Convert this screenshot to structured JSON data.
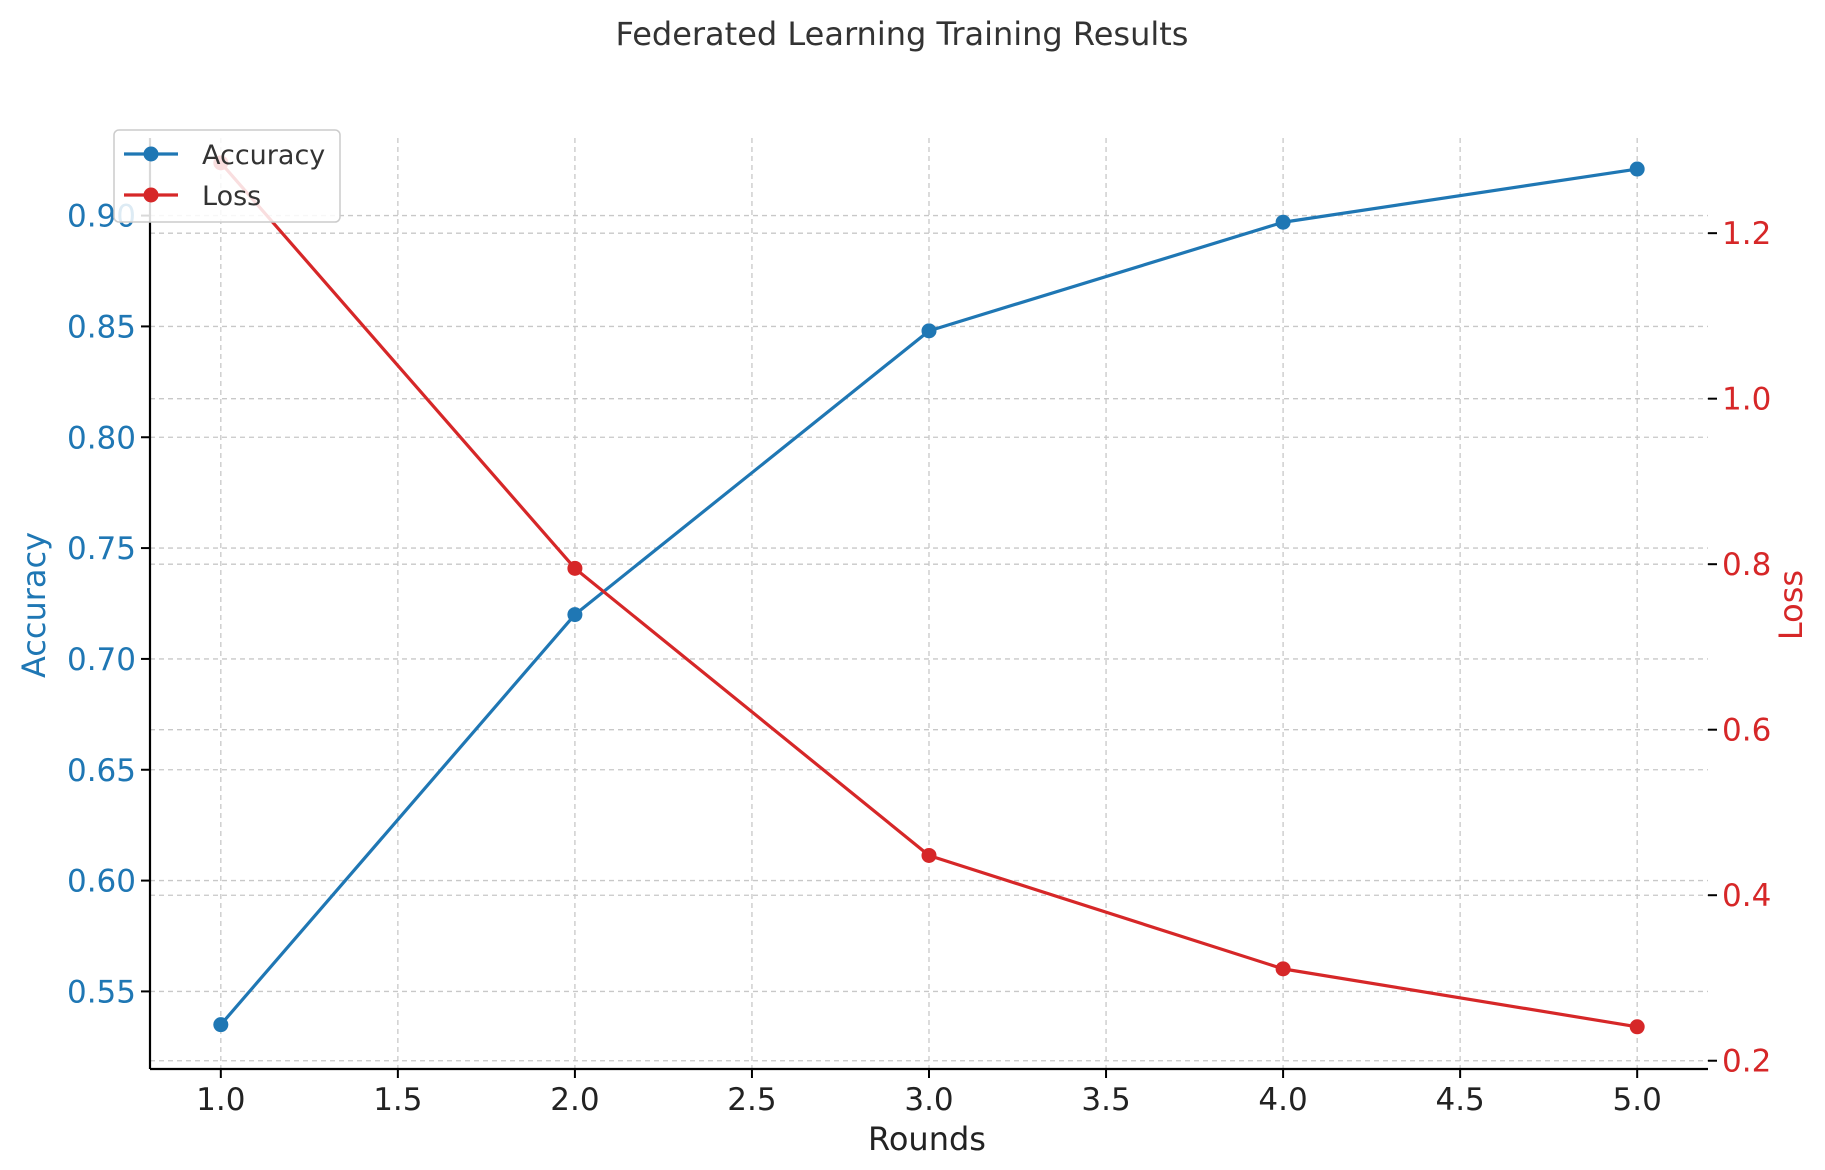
{
  "chart_data": {
    "type": "line",
    "title": "Federated Learning Training Results",
    "xlabel": "Rounds",
    "xlim": [
      0.8,
      5.2
    ],
    "xticks": [
      "1.0",
      "1.5",
      "2.0",
      "2.5",
      "3.0",
      "3.5",
      "4.0",
      "4.5",
      "5.0"
    ],
    "x": [
      1,
      2,
      3,
      4,
      5
    ],
    "grid": true,
    "legend_position": "top-left",
    "y_left": {
      "label": "Accuracy",
      "color": "#1f77b4",
      "lim": [
        0.515,
        0.935
      ],
      "ticks": [
        "0.55",
        "0.60",
        "0.65",
        "0.70",
        "0.75",
        "0.80",
        "0.85",
        "0.90"
      ]
    },
    "y_right": {
      "label": "Loss",
      "color": "#d62728",
      "lim": [
        0.19,
        1.315
      ],
      "ticks": [
        "0.2",
        "0.4",
        "0.6",
        "0.8",
        "1.0",
        "1.2"
      ]
    },
    "series": [
      {
        "name": "Accuracy",
        "axis": "left",
        "color": "#1f77b4",
        "values": [
          0.535,
          0.72,
          0.848,
          0.897,
          0.921
        ]
      },
      {
        "name": "Loss",
        "axis": "right",
        "color": "#d62728",
        "values": [
          1.285,
          0.795,
          0.448,
          0.311,
          0.241
        ]
      }
    ]
  }
}
